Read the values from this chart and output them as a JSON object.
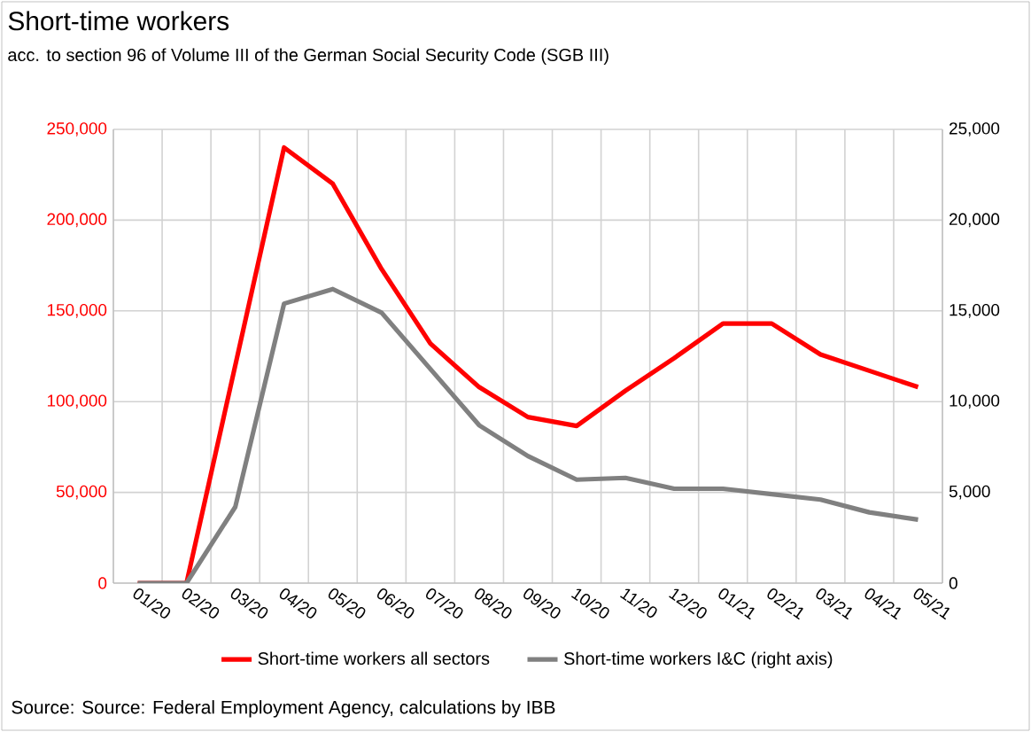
{
  "chart_data": {
    "type": "line",
    "title": "Short-time workers",
    "subtitle": "acc. to section 96 of Volume III of the German Social Security Code (SGB III)",
    "categories": [
      "01/20",
      "02/20",
      "03/20",
      "04/20",
      "05/20",
      "06/20",
      "07/20",
      "08/20",
      "09/20",
      "10/20",
      "11/20",
      "12/20",
      "01/21",
      "02/21",
      "03/21",
      "04/21",
      "05/21"
    ],
    "series": [
      {
        "name": "Short-time workers all sectors",
        "color": "#ff0000",
        "values": [
          0,
          0,
          120000,
          240000,
          220000,
          173000,
          132000,
          108000,
          91500,
          86600,
          106000,
          124000,
          143000,
          143000,
          126000,
          117000,
          108000
        ]
      },
      {
        "name": "Short-time workers I&C (right axis)",
        "color": "#808080",
        "axis": "y2",
        "values": [
          0,
          0,
          4200,
          15400,
          16200,
          14900,
          11800,
          8700,
          7000,
          5700,
          5800,
          5200,
          5200,
          4900,
          4600,
          3900,
          3500
        ]
      }
    ],
    "ylim": [
      0,
      250000
    ],
    "yticks": [
      {
        "value": 0,
        "label": "0"
      },
      {
        "value": 50000,
        "label": "50,000"
      },
      {
        "value": 100000,
        "label": "100,000"
      },
      {
        "value": 150000,
        "label": "150,000"
      },
      {
        "value": 200000,
        "label": "200,000"
      },
      {
        "value": 250000,
        "label": "250,000"
      }
    ],
    "y2lim": [
      0,
      25000
    ],
    "y2ticks": [
      {
        "value": 0,
        "label": "0"
      },
      {
        "value": 5000,
        "label": "5,000"
      },
      {
        "value": 10000,
        "label": "10,000"
      },
      {
        "value": 15000,
        "label": "15,000"
      },
      {
        "value": 20000,
        "label": "20,000"
      },
      {
        "value": 25000,
        "label": "25,000"
      }
    ],
    "grid": true,
    "legend": "bottom",
    "marker": "none",
    "line_style": "solid",
    "annotations": [
      "Source: Source: Federal Employment Agency, calculations by IBB"
    ]
  }
}
